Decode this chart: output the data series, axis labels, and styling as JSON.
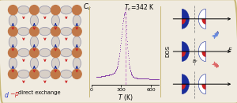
{
  "bg_color": "#f0ebe0",
  "border_color": "#c8b878",
  "label_d_color": "#2233cc",
  "label_p_color": "#cc2222",
  "tc_value": 342,
  "curve_color": "#8844aa",
  "dashed_color": "#cc88cc",
  "spin_up_color": "#1a2d99",
  "spin_down_color": "#cc2222",
  "cr_color": "#c07848",
  "bond_color": "#c0b0a0",
  "ligand_color": "#9090a8",
  "x_ticks": [
    0,
    300,
    600
  ]
}
